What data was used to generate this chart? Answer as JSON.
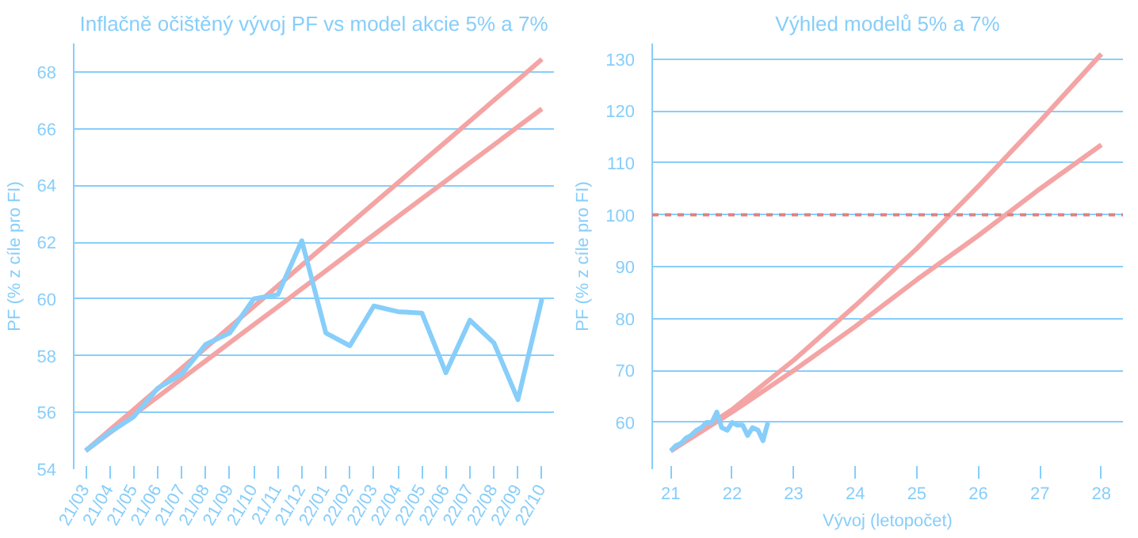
{
  "chart_data": [
    {
      "type": "line",
      "title": "Inflačně očištěný vývoj PF vs model akcie 5% a 7%",
      "ylabel": "PF (% z cíle pro FI)",
      "categories": [
        "21/03",
        "21/04",
        "21/05",
        "21/06",
        "21/07",
        "21/08",
        "21/09",
        "21/10",
        "21/11",
        "21/12",
        "22/01",
        "22/02",
        "22/03",
        "22/04",
        "22/05",
        "22/06",
        "22/07",
        "22/08",
        "22/09",
        "22/10"
      ],
      "series": [
        {
          "color": "#f4a4a4",
          "values": [
            54.65,
            55.38,
            56.1,
            56.83,
            57.56,
            58.28,
            59.01,
            59.73,
            60.46,
            61.19,
            61.91,
            62.64,
            63.37,
            64.09,
            64.82,
            65.54,
            66.27,
            67.0,
            67.72,
            68.45
          ]
        },
        {
          "color": "#f4a4a4",
          "values": [
            54.65,
            55.28,
            55.92,
            56.55,
            57.19,
            57.82,
            58.46,
            59.09,
            59.72,
            60.36,
            60.99,
            61.63,
            62.26,
            62.9,
            63.53,
            64.16,
            64.8,
            65.43,
            66.07,
            66.7
          ]
        },
        {
          "color": "#87cefa",
          "values": [
            54.65,
            55.3,
            55.85,
            56.85,
            57.35,
            58.4,
            58.8,
            60.0,
            60.15,
            62.05,
            58.8,
            58.35,
            59.75,
            59.55,
            59.5,
            57.4,
            59.25,
            58.45,
            56.45,
            60.0
          ]
        }
      ],
      "ylim": [
        54,
        69
      ],
      "yticks": [
        54,
        56,
        58,
        60,
        62,
        64,
        66,
        68
      ],
      "grid": "y",
      "line_style": "solid",
      "marker": "none"
    },
    {
      "type": "line",
      "title": "Výhled modelů 5% a 7%",
      "xlabel": "Vývoj (letopočet)",
      "ylabel": "PF (% z cíle pro FI)",
      "series": [
        {
          "color": "#f4a4a4",
          "x": [
            21,
            22,
            23,
            24,
            25,
            26,
            27,
            28
          ],
          "values": [
            54.5,
            62.5,
            72,
            82.5,
            93.5,
            105.5,
            118,
            131
          ]
        },
        {
          "color": "#f4a4a4",
          "x": [
            21,
            22,
            23,
            24,
            25,
            26,
            27,
            28
          ],
          "values": [
            54.5,
            62,
            70,
            78.5,
            87.5,
            96,
            105,
            113.5
          ]
        },
        {
          "color": "#87cefa",
          "x": [
            21.0,
            21.08,
            21.17,
            21.25,
            21.33,
            21.42,
            21.5,
            21.58,
            21.67,
            21.75,
            21.83,
            21.92,
            22.0,
            22.08,
            22.17,
            22.25,
            22.33,
            22.42,
            22.5,
            22.58
          ],
          "values": [
            54.5,
            55.5,
            56,
            57,
            57.5,
            58.5,
            59,
            60,
            60,
            62,
            59,
            58.5,
            60,
            59.5,
            59.5,
            57.5,
            59,
            58.5,
            56.5,
            60
          ]
        }
      ],
      "ref_lines": [
        {
          "axis": "y",
          "value": 100,
          "color": "#e08080",
          "line_style": "dashed"
        }
      ],
      "xlim": [
        20.7,
        28.35
      ],
      "xticks": [
        21,
        22,
        23,
        24,
        25,
        26,
        27,
        28
      ],
      "ylim": [
        51,
        133
      ],
      "yticks": [
        60,
        70,
        80,
        90,
        100,
        110,
        120,
        130
      ],
      "grid": "y",
      "line_style": "solid",
      "marker": "none"
    }
  ]
}
